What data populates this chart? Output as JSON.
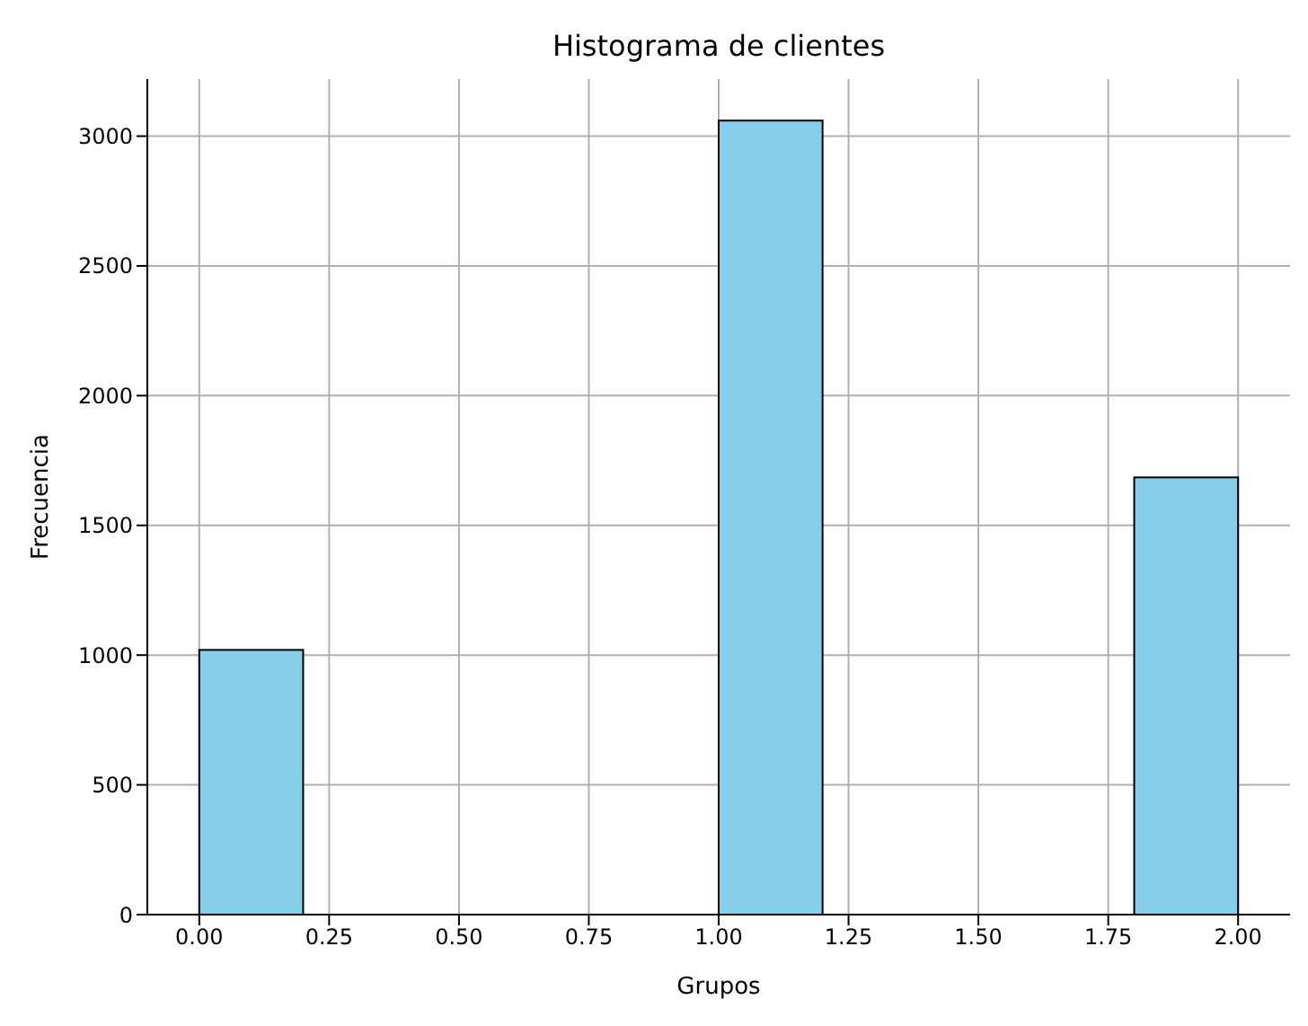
{
  "chart_data": {
    "type": "histogram",
    "title": "Histograma de clientes",
    "xlabel": "Grupos",
    "ylabel": "Frecuencia",
    "bins": [
      0,
      0.2,
      0.4,
      0.6,
      0.8,
      1.0,
      1.2,
      1.4,
      1.6,
      1.8,
      2.0
    ],
    "values": [
      1020,
      0,
      0,
      0,
      0,
      3060,
      0,
      0,
      0,
      1685
    ],
    "color": "#87ceeb",
    "xlim": [
      -0.1,
      2.1
    ],
    "xticks": [
      {
        "value": 0,
        "label": "0.00"
      },
      {
        "value": 0.25,
        "label": "0.25"
      },
      {
        "value": 0.5,
        "label": "0.50"
      },
      {
        "value": 0.75,
        "label": "0.75"
      },
      {
        "value": 1,
        "label": "1.00"
      },
      {
        "value": 1.25,
        "label": "1.25"
      },
      {
        "value": 1.5,
        "label": "1.50"
      },
      {
        "value": 1.75,
        "label": "1.75"
      },
      {
        "value": 2,
        "label": "2.00"
      }
    ],
    "ylim": [
      0,
      3220
    ],
    "yticks": [
      0,
      500,
      1000,
      1500,
      2000,
      2500,
      3000
    ],
    "grid": true
  }
}
